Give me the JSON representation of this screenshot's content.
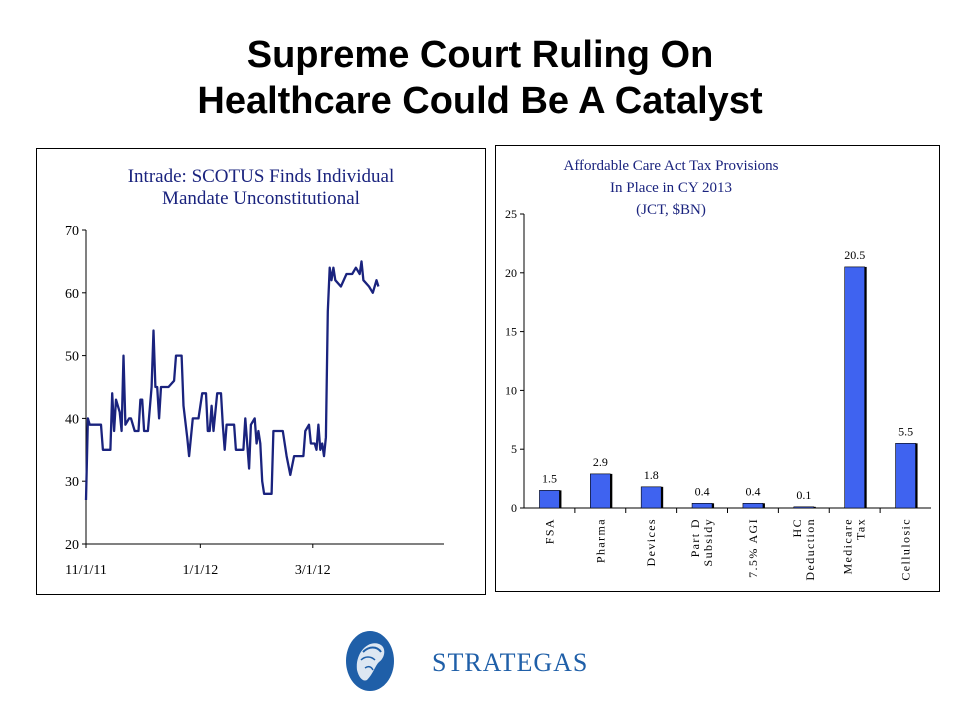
{
  "title": {
    "line1": "Supreme Court Ruling On",
    "line2": "Healthcare Could Be A Catalyst"
  },
  "colors": {
    "line": "#1a237e",
    "chart_title": "#1a237e",
    "bar": "#3f63f0",
    "bar_shadow": "#000000",
    "logo": "#1f5fa8"
  },
  "logo": {
    "text": "STRATEGAS",
    "icon": "athena-helmet-icon"
  },
  "chart_data": [
    {
      "type": "line",
      "title": [
        "Intrade: SCOTUS Finds Individual",
        "Mandate Unconstitutional"
      ],
      "xlabel": "",
      "ylabel": "",
      "ylim": [
        20,
        70
      ],
      "yticks": [
        "70",
        "60",
        "50",
        "40",
        "30",
        "20"
      ],
      "xtick_labels": [
        {
          "date": "2011-11-01",
          "label": "11/1/11"
        },
        {
          "date": "2012-01-01",
          "label": "1/1/12"
        },
        {
          "date": "2012-03-01",
          "label": "3/1/12"
        }
      ],
      "xlim": [
        "2011-11-01",
        "2012-05-10"
      ],
      "grid": false,
      "series": [
        {
          "values": [
            [
              "2011-11-01",
              27
            ],
            [
              "2011-11-02",
              40
            ],
            [
              "2011-11-03",
              39
            ],
            [
              "2011-11-06",
              39
            ],
            [
              "2011-11-09",
              39
            ],
            [
              "2011-11-10",
              35
            ],
            [
              "2011-11-14",
              35
            ],
            [
              "2011-11-15",
              44
            ],
            [
              "2011-11-16",
              38
            ],
            [
              "2011-11-17",
              43
            ],
            [
              "2011-11-19",
              41
            ],
            [
              "2011-11-20",
              38
            ],
            [
              "2011-11-21",
              50
            ],
            [
              "2011-11-22",
              39
            ],
            [
              "2011-11-24",
              40
            ],
            [
              "2011-11-25",
              40
            ],
            [
              "2011-11-27",
              38
            ],
            [
              "2011-11-29",
              38
            ],
            [
              "2011-11-30",
              43
            ],
            [
              "2011-12-01",
              43
            ],
            [
              "2011-12-02",
              38
            ],
            [
              "2011-12-04",
              38
            ],
            [
              "2011-12-06",
              45
            ],
            [
              "2011-12-07",
              54
            ],
            [
              "2011-12-08",
              45
            ],
            [
              "2011-12-09",
              45
            ],
            [
              "2011-12-10",
              40
            ],
            [
              "2011-12-11",
              45
            ],
            [
              "2011-12-15",
              45
            ],
            [
              "2011-12-18",
              46
            ],
            [
              "2011-12-19",
              50
            ],
            [
              "2011-12-22",
              50
            ],
            [
              "2011-12-23",
              42
            ],
            [
              "2011-12-25",
              37
            ],
            [
              "2011-12-26",
              34
            ],
            [
              "2011-12-28",
              40
            ],
            [
              "2011-12-31",
              40
            ],
            [
              "2012-01-02",
              44
            ],
            [
              "2012-01-04",
              44
            ],
            [
              "2012-01-05",
              38
            ],
            [
              "2012-01-06",
              38
            ],
            [
              "2012-01-07",
              42
            ],
            [
              "2012-01-08",
              38
            ],
            [
              "2012-01-10",
              44
            ],
            [
              "2012-01-12",
              44
            ],
            [
              "2012-01-13",
              39
            ],
            [
              "2012-01-14",
              35
            ],
            [
              "2012-01-15",
              39
            ],
            [
              "2012-01-19",
              39
            ],
            [
              "2012-01-20",
              35
            ],
            [
              "2012-01-24",
              35
            ],
            [
              "2012-01-25",
              40
            ],
            [
              "2012-01-27",
              32
            ],
            [
              "2012-01-28",
              39
            ],
            [
              "2012-01-30",
              40
            ],
            [
              "2012-01-31",
              36
            ],
            [
              "2012-02-01",
              38
            ],
            [
              "2012-02-02",
              36
            ],
            [
              "2012-02-03",
              30
            ],
            [
              "2012-02-04",
              28
            ],
            [
              "2012-02-08",
              28
            ],
            [
              "2012-02-09",
              38
            ],
            [
              "2012-02-14",
              38
            ],
            [
              "2012-02-16",
              34
            ],
            [
              "2012-02-18",
              31
            ],
            [
              "2012-02-20",
              34
            ],
            [
              "2012-02-25",
              34
            ],
            [
              "2012-02-26",
              38
            ],
            [
              "2012-02-28",
              39
            ],
            [
              "2012-02-29",
              36
            ],
            [
              "2012-03-02",
              36
            ],
            [
              "2012-03-03",
              35
            ],
            [
              "2012-03-04",
              39
            ],
            [
              "2012-03-05",
              35
            ],
            [
              "2012-03-06",
              36
            ],
            [
              "2012-03-07",
              34
            ],
            [
              "2012-03-08",
              37
            ],
            [
              "2012-03-09",
              57
            ],
            [
              "2012-03-10",
              64
            ],
            [
              "2012-03-11",
              62
            ],
            [
              "2012-03-12",
              64
            ],
            [
              "2012-03-13",
              62
            ],
            [
              "2012-03-16",
              61
            ],
            [
              "2012-03-19",
              63
            ],
            [
              "2012-03-22",
              63
            ],
            [
              "2012-03-24",
              64
            ],
            [
              "2012-03-26",
              63
            ],
            [
              "2012-03-27",
              65
            ],
            [
              "2012-03-28",
              62
            ],
            [
              "2012-03-31",
              61
            ],
            [
              "2012-04-02",
              60
            ],
            [
              "2012-04-04",
              62
            ],
            [
              "2012-04-05",
              61
            ]
          ]
        }
      ]
    },
    {
      "type": "bar",
      "title": [
        "Affordable Care Act Tax Provisions",
        "In Place in CY 2013",
        "(JCT, $BN)"
      ],
      "xlabel": "",
      "ylabel": "",
      "ylim": [
        0,
        25
      ],
      "yticks": [
        "0",
        "5",
        "10",
        "15",
        "20",
        "25"
      ],
      "grid": false,
      "categories": [
        [
          "FSA"
        ],
        [
          "Pharma"
        ],
        [
          "Devices"
        ],
        [
          "Part D",
          "Subsidy"
        ],
        [
          "7.5% AGI"
        ],
        [
          "HC",
          "Deduction"
        ],
        [
          "Medicare",
          "Tax"
        ],
        [
          "Cellulosic"
        ]
      ],
      "values": [
        1.5,
        2.9,
        1.8,
        0.4,
        0.4,
        0.1,
        20.5,
        5.5
      ],
      "data_labels": [
        "1.5",
        "2.9",
        "1.8",
        "0.4",
        "0.4",
        "0.1",
        "20.5",
        "5.5"
      ]
    }
  ]
}
